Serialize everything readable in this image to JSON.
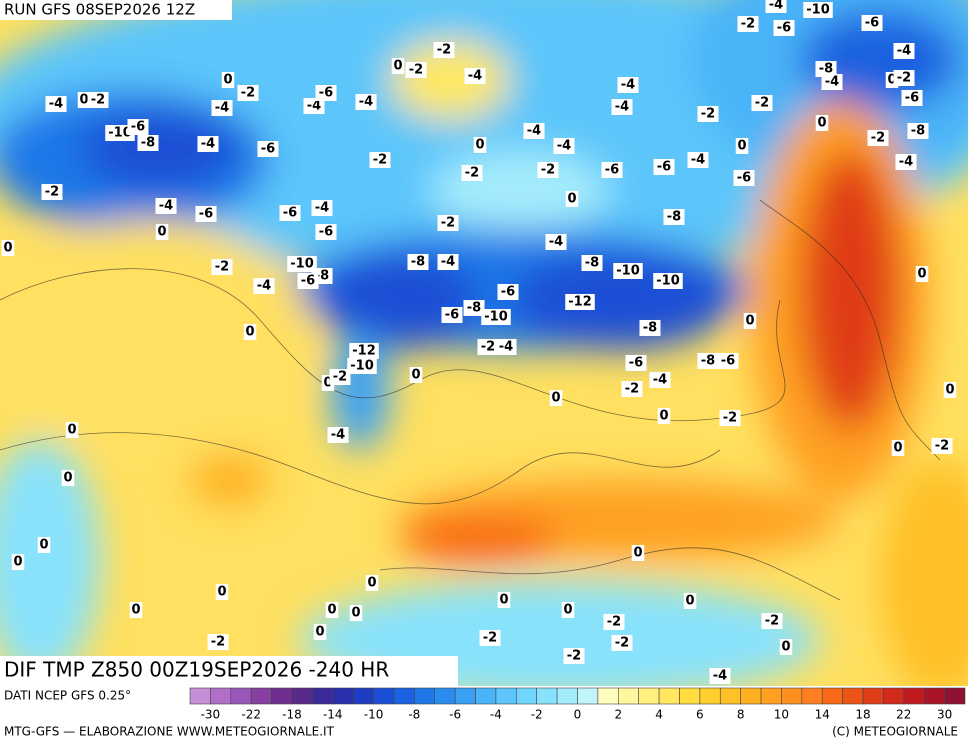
{
  "header": {
    "title": "RUN GFS 08SEP2026 12Z"
  },
  "map": {
    "subtitle": "DIF TMP Z850 00Z19SEP2026 -240 HR",
    "contour_labels": [
      -2,
      -4,
      -2,
      0,
      -4,
      0,
      -2,
      0,
      -2,
      -4,
      -4,
      -6,
      -4,
      -10,
      -6,
      -8,
      -4,
      -6,
      -2,
      0,
      -4,
      -4,
      -2,
      -2,
      0,
      -4,
      -4,
      -2,
      -2,
      -4,
      -10,
      -2,
      -6,
      -6,
      -4,
      -8,
      -4,
      0,
      -2,
      -6,
      0,
      -2,
      -8,
      -4,
      0,
      -6,
      -6,
      -4,
      -6,
      -2,
      -4,
      -6,
      -6,
      -4,
      -6,
      -8,
      -2,
      -4,
      0,
      0,
      -2,
      -10,
      -8,
      -6,
      -4,
      -8,
      -4,
      -8,
      -10,
      -10,
      -6,
      -12,
      -6,
      -8,
      -10,
      0,
      -8,
      0,
      -2,
      -4,
      -12,
      -10,
      -6,
      -8,
      -6,
      0,
      -2,
      -4,
      0,
      0,
      -2,
      0,
      -2,
      -4,
      0,
      0,
      0,
      0,
      0,
      0,
      0,
      0,
      0,
      0,
      0,
      0,
      0,
      -2,
      -2,
      -2,
      -2,
      -2,
      0,
      -2,
      -4,
      0,
      0,
      0,
      -2,
      0
    ]
  },
  "legend": {
    "source": "DATI NCEP GFS 0.25°",
    "colors": [
      "#c58fd6",
      "#b070c8",
      "#9a55b8",
      "#86409f",
      "#6f2f8e",
      "#5a2a8a",
      "#3a2a9a",
      "#2a2fae",
      "#1e3cc4",
      "#1a4fd6",
      "#1a62e0",
      "#1f78e8",
      "#2a8cf0",
      "#3aa0f4",
      "#4ab4f8",
      "#5cc6fa",
      "#70d6fc",
      "#88e2fc",
      "#a4ecfc",
      "#c2f4fc",
      "#fffcc0",
      "#fff7a0",
      "#fff080",
      "#ffe860",
      "#ffdc40",
      "#ffcf30",
      "#ffc028",
      "#ffb020",
      "#ffa020",
      "#ff9020",
      "#ff8020",
      "#f86a18",
      "#ee5418",
      "#e03e18",
      "#d22a1c",
      "#c01c20",
      "#aa1428",
      "#901034"
    ],
    "ticks": [
      -30,
      -22,
      -18,
      -14,
      -10,
      -8,
      -6,
      -4,
      -2,
      0,
      2,
      4,
      6,
      8,
      10,
      14,
      18,
      22,
      30
    ]
  },
  "footer": {
    "left": "MTG-GFS — ELABORAZIONE WWW.METEOGIORNALE.IT",
    "right": "(C) METEOGIORNALE"
  }
}
